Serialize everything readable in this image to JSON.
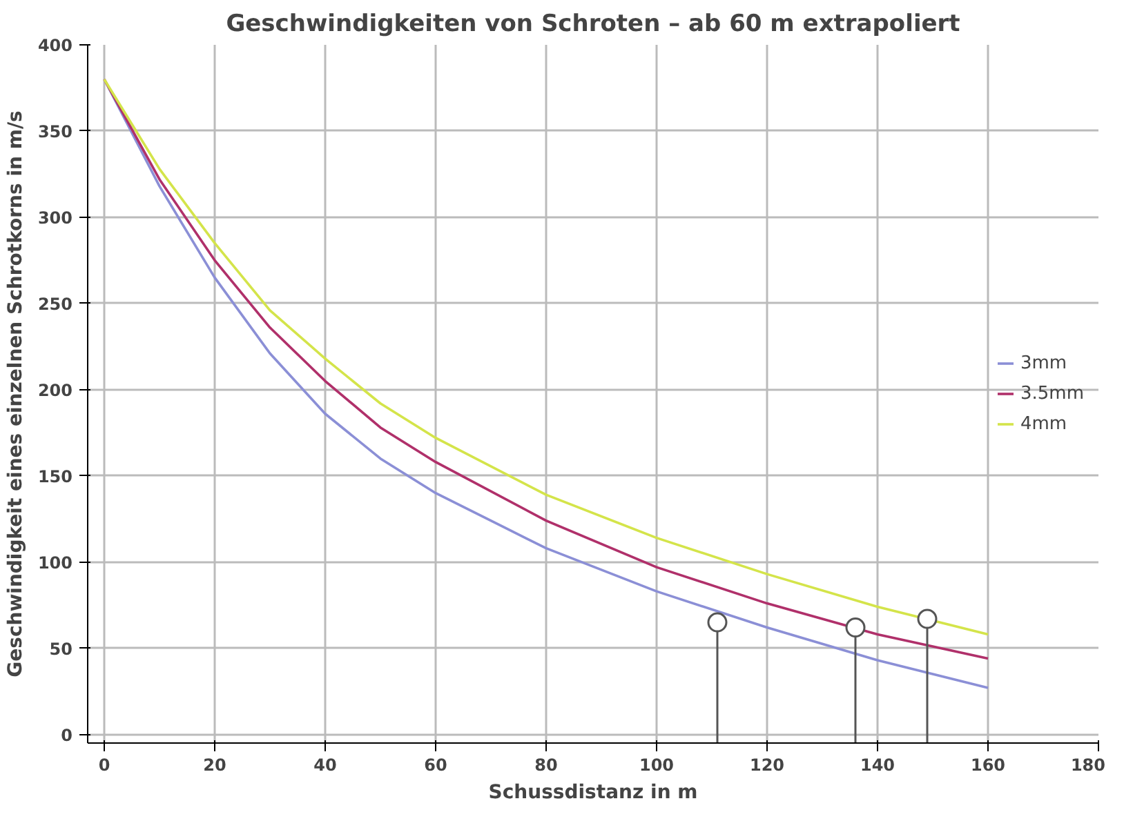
{
  "chart_data": {
    "type": "line",
    "title": "Geschwindigkeiten von Schroten – ab 60 m extrapoliert",
    "xlabel": "Schussdistanz in m",
    "ylabel": "Geschwindigkeit eines einzelnen Schrotkorns in m/s",
    "x": [
      0,
      10,
      20,
      30,
      40,
      50,
      60,
      80,
      100,
      120,
      140,
      160
    ],
    "series": [
      {
        "name": "3mm",
        "color": "#8b8fd6",
        "values": [
          380,
          318,
          265,
          221,
          186,
          160,
          140,
          108,
          83,
          62,
          43,
          27
        ]
      },
      {
        "name": "3.5mm",
        "color": "#b0306a",
        "values": [
          380,
          322,
          275,
          236,
          205,
          178,
          158,
          124,
          97,
          76,
          58,
          44
        ]
      },
      {
        "name": "4mm",
        "color": "#d4e44a",
        "values": [
          380,
          328,
          285,
          246,
          218,
          192,
          172,
          139,
          114,
          93,
          74,
          58
        ]
      },
      {
        "type": "lollipop",
        "marker": "circle",
        "color": "#555555",
        "x": [
          111,
          136,
          149
        ],
        "values": [
          65,
          62,
          67
        ]
      }
    ],
    "xlim": [
      -3,
      180
    ],
    "ylim": [
      -5,
      400
    ],
    "xticks": [
      0,
      20,
      40,
      60,
      80,
      100,
      120,
      140,
      160,
      180
    ],
    "yticks": [
      0,
      50,
      100,
      150,
      200,
      250,
      300,
      350,
      400
    ],
    "grid": true,
    "legend": "right",
    "marker": "none",
    "line_style": "solid"
  }
}
